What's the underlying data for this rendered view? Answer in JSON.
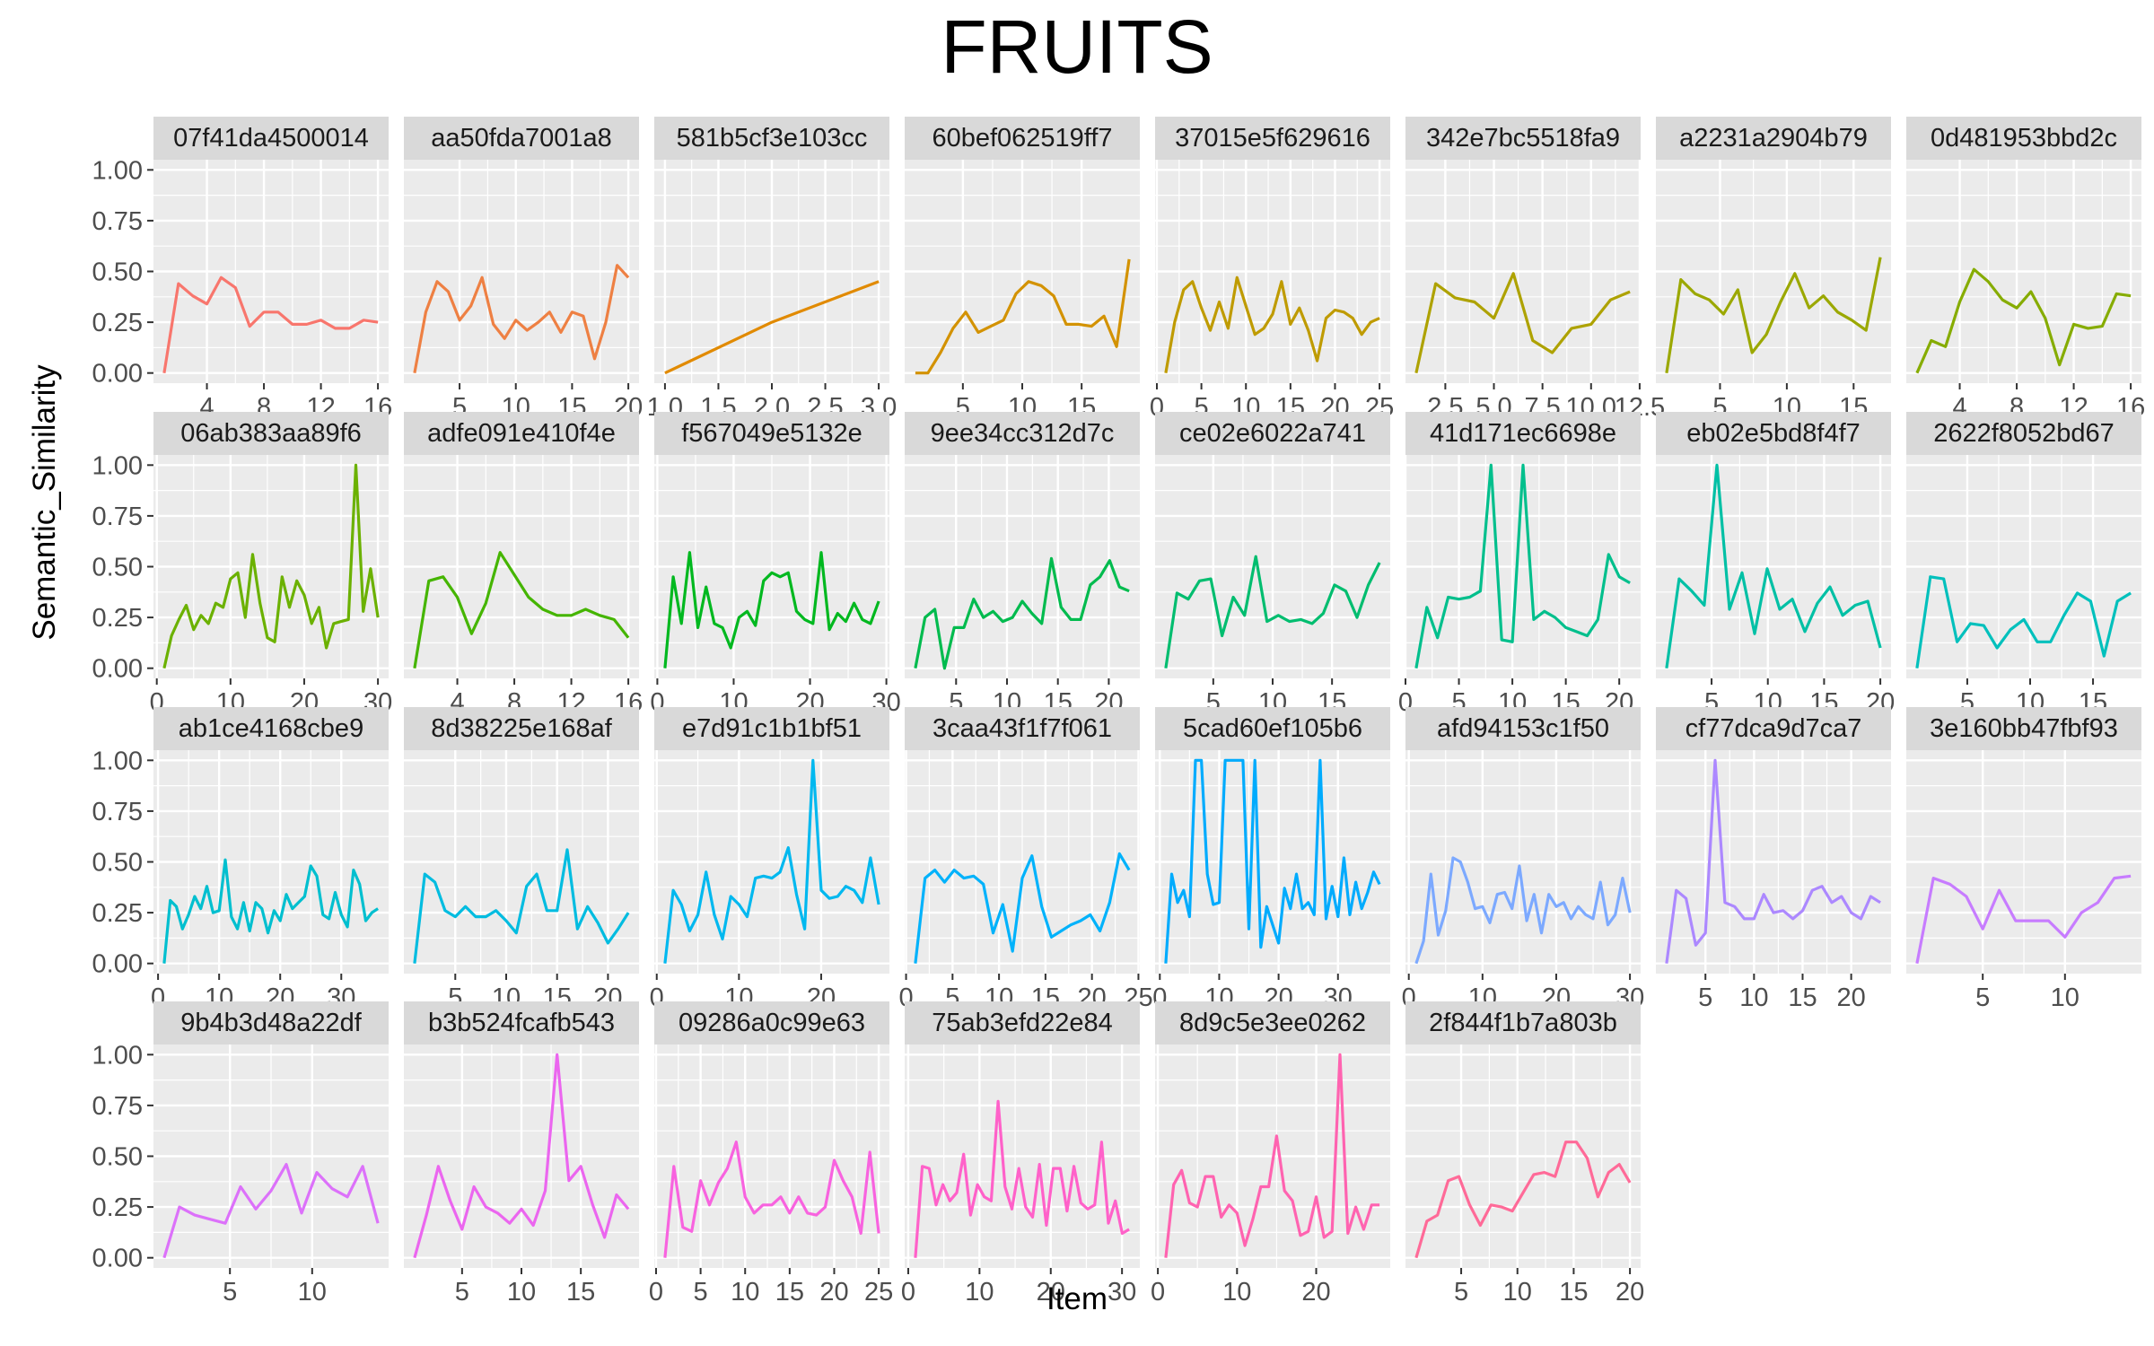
{
  "chart_data": {
    "type": "line",
    "title": "FRUITS",
    "xlabel": "Item",
    "ylabel": "Semantic_Similarity",
    "ylim": [
      0,
      1
    ],
    "y_ticks": [
      "0.00",
      "0.25",
      "0.50",
      "0.75",
      "1.00"
    ],
    "grid": true,
    "legend": "none",
    "facet_layout": "8 columns x 4 rows, shared y axis",
    "panels": [
      {
        "label": "07f41da4500014",
        "color": "#F8766D",
        "xlim": [
          1,
          16
        ],
        "x_ticks": [
          "4",
          "8",
          "12",
          "16"
        ],
        "values": [
          0.0,
          0.44,
          0.38,
          0.34,
          0.47,
          0.42,
          0.23,
          0.3,
          0.3,
          0.24,
          0.24,
          0.26,
          0.22,
          0.22,
          0.26,
          0.25
        ]
      },
      {
        "label": "aa50fda7001a8",
        "color": "#EE8043",
        "xlim": [
          1,
          20
        ],
        "x_ticks": [
          "5",
          "10",
          "15",
          "20"
        ],
        "values": [
          0.0,
          0.3,
          0.45,
          0.4,
          0.26,
          0.33,
          0.47,
          0.24,
          0.17,
          0.26,
          0.21,
          0.25,
          0.3,
          0.2,
          0.3,
          0.28,
          0.07,
          0.25,
          0.53,
          0.47
        ]
      },
      {
        "label": "581b5cf3e103cc",
        "color": "#E18A00",
        "xlim": [
          1,
          3
        ],
        "x_ticks": [
          "1.0",
          "1.5",
          "2.0",
          "2.5",
          "3.0"
        ],
        "values": [
          0.0,
          0.25,
          0.45
        ]
      },
      {
        "label": "60bef062519ff7",
        "color": "#D39200",
        "xlim": [
          1,
          19
        ],
        "x_ticks": [
          "5",
          "10",
          "15"
        ],
        "values": [
          0.0,
          0.0,
          0.1,
          0.22,
          0.3,
          0.2,
          0.23,
          0.26,
          0.39,
          0.45,
          0.43,
          0.38,
          0.24,
          0.24,
          0.23,
          0.28,
          0.13,
          0.56
        ]
      },
      {
        "label": "37015e5f629616",
        "color": "#BF9B00",
        "xlim": [
          1,
          25
        ],
        "x_ticks": [
          "0",
          "5",
          "10",
          "15",
          "20",
          "25"
        ],
        "values": [
          0.0,
          0.25,
          0.41,
          0.45,
          0.32,
          0.21,
          0.35,
          0.22,
          0.47,
          0.33,
          0.19,
          0.22,
          0.29,
          0.45,
          0.24,
          0.32,
          0.21,
          0.06,
          0.27,
          0.31,
          0.3,
          0.27,
          0.19,
          0.25,
          0.27
        ]
      },
      {
        "label": "342e7bc5518fa9",
        "color": "#AEA200",
        "xlim": [
          1,
          12
        ],
        "x_ticks": [
          "2.5",
          "5.0",
          "7.5",
          "10.0",
          "12.5"
        ],
        "values": [
          0.0,
          0.44,
          0.37,
          0.35,
          0.27,
          0.49,
          0.16,
          0.1,
          0.22,
          0.24,
          0.36,
          0.4
        ]
      },
      {
        "label": "a2231a2904b79",
        "color": "#9BA800",
        "xlim": [
          1,
          17
        ],
        "x_ticks": [
          "5",
          "10",
          "15"
        ],
        "values": [
          0.0,
          0.46,
          0.39,
          0.36,
          0.29,
          0.41,
          0.1,
          0.19,
          0.35,
          0.49,
          0.32,
          0.38,
          0.3,
          0.26,
          0.21,
          0.57
        ]
      },
      {
        "label": "0d481953bbd2c",
        "color": "#86AC00",
        "xlim": [
          1,
          16
        ],
        "x_ticks": [
          "4",
          "8",
          "12",
          "16"
        ],
        "values": [
          0.0,
          0.16,
          0.13,
          0.35,
          0.51,
          0.45,
          0.36,
          0.32,
          0.4,
          0.27,
          0.04,
          0.24,
          0.22,
          0.23,
          0.39,
          0.38
        ]
      },
      {
        "label": "06ab383aa89f6",
        "color": "#6BB100",
        "xlim": [
          1,
          30
        ],
        "x_ticks": [
          "0",
          "10",
          "20",
          "30"
        ],
        "values": [
          0.0,
          0.16,
          0.24,
          0.31,
          0.19,
          0.26,
          0.22,
          0.32,
          0.3,
          0.44,
          0.47,
          0.25,
          0.56,
          0.32,
          0.15,
          0.13,
          0.45,
          0.3,
          0.43,
          0.36,
          0.22,
          0.3,
          0.1,
          0.22,
          0.23,
          0.24,
          1.0,
          0.28,
          0.49,
          0.25
        ]
      },
      {
        "label": "adfe091e410f4e",
        "color": "#45B500",
        "xlim": [
          1,
          16
        ],
        "x_ticks": [
          "4",
          "8",
          "12",
          "16"
        ],
        "values": [
          0.0,
          0.43,
          0.45,
          0.35,
          0.17,
          0.32,
          0.57,
          0.46,
          0.35,
          0.29,
          0.26,
          0.26,
          0.29,
          0.26,
          0.24,
          0.15
        ]
      },
      {
        "label": "f567049e5132e",
        "color": "#00B81F",
        "xlim": [
          1,
          29
        ],
        "x_ticks": [
          "0",
          "10",
          "20",
          "30"
        ],
        "values": [
          0.0,
          0.45,
          0.22,
          0.57,
          0.2,
          0.4,
          0.22,
          0.2,
          0.1,
          0.25,
          0.28,
          0.21,
          0.43,
          0.47,
          0.45,
          0.47,
          0.28,
          0.24,
          0.22,
          0.57,
          0.19,
          0.27,
          0.23,
          0.32,
          0.24,
          0.22,
          0.33
        ]
      },
      {
        "label": "9ee34cc312d7c",
        "color": "#00BB4E",
        "xlim": [
          1,
          22
        ],
        "x_ticks": [
          "5",
          "10",
          "15",
          "20"
        ],
        "values": [
          0.0,
          0.25,
          0.29,
          0.0,
          0.2,
          0.2,
          0.34,
          0.25,
          0.28,
          0.23,
          0.25,
          0.33,
          0.27,
          0.22,
          0.54,
          0.3,
          0.24,
          0.24,
          0.41,
          0.45,
          0.53,
          0.4,
          0.38
        ]
      },
      {
        "label": "ce02e6022a741",
        "color": "#00BD6F",
        "xlim": [
          1,
          19
        ],
        "x_ticks": [
          "5",
          "10",
          "15"
        ],
        "values": [
          0.0,
          0.37,
          0.34,
          0.43,
          0.44,
          0.16,
          0.35,
          0.26,
          0.55,
          0.23,
          0.26,
          0.23,
          0.24,
          0.22,
          0.27,
          0.41,
          0.38,
          0.25,
          0.41,
          0.52
        ]
      },
      {
        "label": "41d171ec6698e",
        "color": "#00BF8C",
        "xlim": [
          1,
          21
        ],
        "x_ticks": [
          "0",
          "5",
          "10",
          "15",
          "20"
        ],
        "values": [
          0.0,
          0.3,
          0.15,
          0.35,
          0.34,
          0.35,
          0.38,
          1.0,
          0.14,
          0.13,
          1.0,
          0.24,
          0.28,
          0.25,
          0.2,
          0.18,
          0.16,
          0.24,
          0.56,
          0.45,
          0.42
        ]
      },
      {
        "label": "eb02e5bd8f4f7",
        "color": "#00C0A5",
        "xlim": [
          1,
          20
        ],
        "x_ticks": [
          "5",
          "10",
          "15",
          "20"
        ],
        "values": [
          0.0,
          0.44,
          0.38,
          0.31,
          1.0,
          0.29,
          0.47,
          0.17,
          0.49,
          0.29,
          0.34,
          0.18,
          0.32,
          0.4,
          0.26,
          0.31,
          0.33,
          0.1
        ]
      },
      {
        "label": "2622f8052bd67",
        "color": "#00C0BC",
        "xlim": [
          1,
          18
        ],
        "x_ticks": [
          "5",
          "10",
          "15"
        ],
        "values": [
          0.0,
          0.45,
          0.44,
          0.13,
          0.22,
          0.21,
          0.1,
          0.19,
          0.24,
          0.13,
          0.13,
          0.26,
          0.37,
          0.33,
          0.06,
          0.33,
          0.37
        ]
      },
      {
        "label": "ab1ce4168cbe9",
        "color": "#00BFCF",
        "xlim": [
          1,
          36
        ],
        "x_ticks": [
          "0",
          "10",
          "20",
          "30"
        ],
        "values": [
          0.0,
          0.31,
          0.28,
          0.17,
          0.24,
          0.33,
          0.27,
          0.38,
          0.25,
          0.26,
          0.51,
          0.23,
          0.17,
          0.3,
          0.16,
          0.3,
          0.27,
          0.15,
          0.26,
          0.21,
          0.34,
          0.27,
          0.3,
          0.33,
          0.48,
          0.43,
          0.24,
          0.22,
          0.35,
          0.24,
          0.18,
          0.46,
          0.39,
          0.21,
          0.25,
          0.27
        ]
      },
      {
        "label": "8d38225e168af",
        "color": "#00BCE0",
        "xlim": [
          1,
          22
        ],
        "x_ticks": [
          "5",
          "10",
          "15",
          "20"
        ],
        "values": [
          0.0,
          0.44,
          0.4,
          0.26,
          0.23,
          0.28,
          0.23,
          0.23,
          0.26,
          0.21,
          0.15,
          0.38,
          0.44,
          0.26,
          0.26,
          0.56,
          0.17,
          0.28,
          0.2,
          0.1,
          0.17,
          0.25
        ]
      },
      {
        "label": "e7d91c1b1bf51",
        "color": "#00B8EF",
        "xlim": [
          1,
          27
        ],
        "x_ticks": [
          "0",
          "10",
          "20"
        ],
        "values": [
          0.0,
          0.36,
          0.29,
          0.16,
          0.24,
          0.45,
          0.24,
          0.12,
          0.33,
          0.29,
          0.23,
          0.42,
          0.43,
          0.42,
          0.45,
          0.57,
          0.34,
          0.17,
          1.0,
          0.36,
          0.32,
          0.33,
          0.38,
          0.36,
          0.3,
          0.52,
          0.29
        ]
      },
      {
        "label": "3caa43f1f7f061",
        "color": "#00B2FB",
        "xlim": [
          1,
          24
        ],
        "x_ticks": [
          "0",
          "5",
          "10",
          "15",
          "20",
          "25"
        ],
        "values": [
          0.0,
          0.42,
          0.46,
          0.4,
          0.46,
          0.42,
          0.43,
          0.39,
          0.15,
          0.29,
          0.06,
          0.42,
          0.53,
          0.28,
          0.13,
          0.16,
          0.19,
          0.21,
          0.24,
          0.16,
          0.3,
          0.54,
          0.46
        ]
      },
      {
        "label": "5cad60ef105b6",
        "color": "#00ABFD",
        "xlim": [
          1,
          37
        ],
        "x_ticks": [
          "0",
          "10",
          "20",
          "30"
        ],
        "values": [
          0.0,
          0.44,
          0.3,
          0.36,
          0.23,
          1.0,
          1.0,
          0.44,
          0.29,
          0.3,
          1.0,
          1.0,
          1.0,
          1.0,
          0.17,
          1.0,
          0.08,
          0.28,
          0.19,
          0.1,
          0.37,
          0.27,
          0.44,
          0.27,
          0.3,
          0.24,
          1.0,
          0.22,
          0.38,
          0.23,
          0.52,
          0.24,
          0.4,
          0.27,
          0.35,
          0.45,
          0.39
        ]
      },
      {
        "label": "afd94153c1f50",
        "color": "#7CA9FF",
        "xlim": [
          1,
          30
        ],
        "x_ticks": [
          "0",
          "10",
          "20",
          "30"
        ],
        "values": [
          0.0,
          0.11,
          0.44,
          0.14,
          0.26,
          0.52,
          0.5,
          0.4,
          0.27,
          0.28,
          0.2,
          0.34,
          0.35,
          0.27,
          0.48,
          0.21,
          0.34,
          0.15,
          0.34,
          0.28,
          0.3,
          0.22,
          0.28,
          0.24,
          0.22,
          0.4,
          0.19,
          0.24,
          0.42,
          0.25
        ]
      },
      {
        "label": "cf77dca9d7ca7",
        "color": "#AC88FF",
        "xlim": [
          1,
          23
        ],
        "x_ticks": [
          "5",
          "10",
          "15",
          "20"
        ],
        "values": [
          0.0,
          0.36,
          0.32,
          0.09,
          0.15,
          1.0,
          0.3,
          0.28,
          0.22,
          0.22,
          0.34,
          0.25,
          0.26,
          0.22,
          0.26,
          0.36,
          0.38,
          0.3,
          0.33,
          0.25,
          0.22,
          0.33,
          0.3
        ]
      },
      {
        "label": "3e160bb47fbf93",
        "color": "#C77CFF",
        "xlim": [
          1,
          14
        ],
        "x_ticks": [
          "5",
          "10"
        ],
        "values": [
          0.0,
          0.42,
          0.39,
          0.33,
          0.17,
          0.36,
          0.21,
          0.21,
          0.21,
          0.13,
          0.25,
          0.3,
          0.42,
          0.43
        ]
      },
      {
        "label": "9b4b3d48a22df",
        "color": "#DC71FA",
        "xlim": [
          1,
          14
        ],
        "x_ticks": [
          "5",
          "10"
        ],
        "values": [
          0.0,
          0.25,
          0.21,
          0.19,
          0.17,
          0.35,
          0.24,
          0.33,
          0.46,
          0.22,
          0.42,
          0.34,
          0.3,
          0.45,
          0.17
        ]
      },
      {
        "label": "b3b524fcafb543",
        "color": "#EB66EF",
        "xlim": [
          1,
          19
        ],
        "x_ticks": [
          "5",
          "10",
          "15"
        ],
        "values": [
          0.0,
          0.21,
          0.45,
          0.28,
          0.14,
          0.35,
          0.25,
          0.22,
          0.17,
          0.24,
          0.16,
          0.33,
          1.0,
          0.38,
          0.45,
          0.26,
          0.1,
          0.31,
          0.24
        ]
      },
      {
        "label": "09286a0c99e63",
        "color": "#F863DF",
        "xlim": [
          1,
          25
        ],
        "x_ticks": [
          "0",
          "5",
          "10",
          "15",
          "20",
          "25"
        ],
        "values": [
          0.0,
          0.45,
          0.15,
          0.13,
          0.38,
          0.26,
          0.37,
          0.44,
          0.57,
          0.3,
          0.22,
          0.26,
          0.26,
          0.3,
          0.22,
          0.3,
          0.22,
          0.21,
          0.25,
          0.48,
          0.38,
          0.3,
          0.12,
          0.52,
          0.12
        ]
      },
      {
        "label": "75ab3efd22e84",
        "color": "#FF61C9",
        "xlim": [
          1,
          31
        ],
        "x_ticks": [
          "0",
          "10",
          "20",
          "30"
        ],
        "values": [
          0.0,
          0.45,
          0.44,
          0.26,
          0.36,
          0.28,
          0.32,
          0.51,
          0.21,
          0.36,
          0.3,
          0.28,
          0.77,
          0.35,
          0.24,
          0.44,
          0.25,
          0.2,
          0.46,
          0.16,
          0.44,
          0.44,
          0.23,
          0.45,
          0.27,
          0.24,
          0.26,
          0.57,
          0.17,
          0.28,
          0.12,
          0.14
        ]
      },
      {
        "label": "8d9c5e3ee0262",
        "color": "#FF63B0",
        "xlim": [
          1,
          28
        ],
        "x_ticks": [
          "0",
          "10",
          "20"
        ],
        "values": [
          0.0,
          0.36,
          0.43,
          0.27,
          0.25,
          0.4,
          0.4,
          0.2,
          0.26,
          0.22,
          0.06,
          0.19,
          0.35,
          0.35,
          0.6,
          0.33,
          0.28,
          0.11,
          0.13,
          0.3,
          0.1,
          0.13,
          1.0,
          0.12,
          0.25,
          0.14,
          0.26,
          0.26
        ]
      },
      {
        "label": "2f844f1b7a803b",
        "color": "#FF6A98",
        "xlim": [
          1,
          20
        ],
        "x_ticks": [
          "5",
          "10",
          "15",
          "20"
        ],
        "values": [
          0.0,
          0.18,
          0.21,
          0.38,
          0.4,
          0.26,
          0.16,
          0.26,
          0.25,
          0.23,
          0.32,
          0.41,
          0.42,
          0.4,
          0.57,
          0.57,
          0.49,
          0.3,
          0.42,
          0.46,
          0.37
        ]
      }
    ]
  }
}
